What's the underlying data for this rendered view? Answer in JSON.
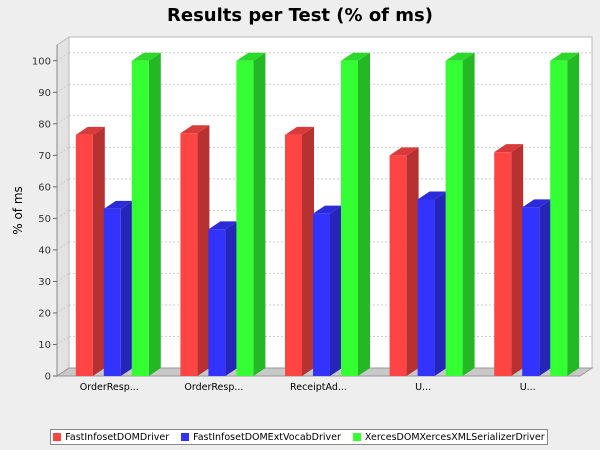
{
  "chart_data": {
    "type": "bar",
    "title": "Results per Test (% of ms)",
    "xlabel": "",
    "ylabel": "% of ms",
    "ylim": [
      0,
      105
    ],
    "yticks": [
      0,
      10,
      20,
      30,
      40,
      50,
      60,
      70,
      80,
      90,
      100
    ],
    "grid": true,
    "legend_position": "bottom",
    "three_d": true,
    "categories": [
      "OrderResp...",
      "OrderResp...",
      "ReceiptAd...",
      "U...",
      "U..."
    ],
    "series": [
      {
        "name": "FastInfosetDOMDriver",
        "color": "#ff4444",
        "values": [
          76.5,
          77,
          76.5,
          70,
          71
        ]
      },
      {
        "name": "FastInfosetDOMExtVocabDriver",
        "color": "#3333ff",
        "values": [
          53,
          46.5,
          51.5,
          56,
          53.5
        ]
      },
      {
        "name": "XercesDOMXercesXMLSerializerDriver",
        "color": "#33ff33",
        "values": [
          100,
          100,
          100,
          100,
          100
        ]
      }
    ]
  }
}
